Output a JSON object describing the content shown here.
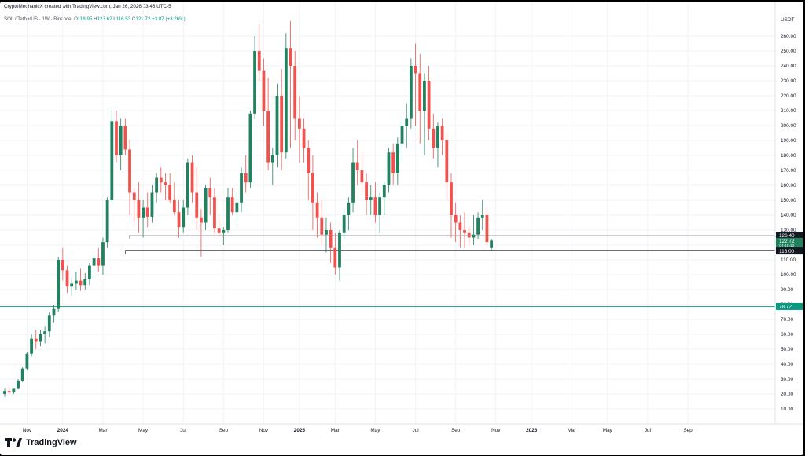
{
  "header": {
    "creator_line": "CryptoMechanicX created with TradingView.com, Jan 26, 2026 03:46 UTC-5",
    "symbol": "SOL / TetherUS · 1W · Binance",
    "ohlc": {
      "o_label": "O",
      "o": "118.95",
      "h_label": "H",
      "h": "123.62",
      "l_label": "L",
      "l": "116.53",
      "c_label": "C",
      "c": "122.72",
      "change": "+3.87 (+3.26%)"
    }
  },
  "currency_label": "USDT",
  "brand": "TradingView",
  "colors": {
    "up": "#26a69a",
    "up_dark": "#22815f",
    "down": "#ef5350",
    "hline": "#089981"
  },
  "chart_data": {
    "type": "candlestick",
    "symbol": "SOL / TetherUS",
    "interval": "1W",
    "exchange": "Binance",
    "y_axis": {
      "side": "right",
      "ylim": [
        5,
        270
      ],
      "ticks": [
        10,
        20,
        30,
        40,
        50,
        60,
        70,
        80,
        90,
        100,
        110,
        120,
        130,
        140,
        150,
        160,
        170,
        180,
        190,
        200,
        210,
        220,
        230,
        240,
        250,
        260
      ],
      "tick_labels": [
        "10.00",
        "20.00",
        "30.00",
        "40.00",
        "50.00",
        "60.00",
        "70.00",
        "80.00",
        "90.00",
        "100.00",
        "110.00",
        "120.00",
        "130.00",
        "140.00",
        "150.00",
        "160.00",
        "170.00",
        "180.00",
        "190.00",
        "200.00",
        "210.00",
        "220.00",
        "230.00",
        "240.00",
        "250.00",
        "260.00"
      ]
    },
    "x_axis": {
      "labels": [
        {
          "label": "Nov",
          "week": 5
        },
        {
          "label": "2024",
          "week": 13,
          "bold": true
        },
        {
          "label": "Mar",
          "week": 22
        },
        {
          "label": "May",
          "week": 31
        },
        {
          "label": "Jul",
          "week": 40
        },
        {
          "label": "Sep",
          "week": 49
        },
        {
          "label": "Nov",
          "week": 58
        },
        {
          "label": "2025",
          "week": 66,
          "bold": true
        },
        {
          "label": "Mar",
          "week": 74
        },
        {
          "label": "May",
          "week": 83
        },
        {
          "label": "Jul",
          "week": 92
        },
        {
          "label": "Sep",
          "week": 101
        },
        {
          "label": "Nov",
          "week": 110
        },
        {
          "label": "2026",
          "week": 118,
          "bold": true
        },
        {
          "label": "Mar",
          "week": 127
        },
        {
          "label": "May",
          "week": 135
        },
        {
          "label": "Jul",
          "week": 144
        },
        {
          "label": "Sep",
          "week": 153
        }
      ]
    },
    "horizontal_lines": [
      {
        "price": 78.72,
        "label": "78.72",
        "color": "#089981"
      }
    ],
    "support_lines": [
      {
        "price": 126.4,
        "from_week": 28,
        "label": "126.40"
      },
      {
        "price": 116.0,
        "from_week": 27,
        "label": "116.00"
      }
    ],
    "price_labels": [
      {
        "price": 126.4,
        "label": "126.40",
        "style": "dark"
      },
      {
        "price": 122.72,
        "label": "122.72",
        "style": "green"
      },
      {
        "price": 119.5,
        "label": "04:18:13",
        "style": "green-small"
      },
      {
        "price": 116.0,
        "label": "116.00",
        "style": "dark"
      }
    ],
    "candles": [
      [
        20,
        24,
        18,
        22
      ],
      [
        22,
        25,
        20,
        21
      ],
      [
        21,
        24,
        20,
        24
      ],
      [
        24,
        30,
        23,
        29
      ],
      [
        29,
        38,
        28,
        37
      ],
      [
        37,
        48,
        36,
        47
      ],
      [
        47,
        60,
        45,
        57
      ],
      [
        57,
        63,
        50,
        55
      ],
      [
        55,
        63,
        52,
        60
      ],
      [
        60,
        65,
        54,
        62
      ],
      [
        62,
        75,
        58,
        73
      ],
      [
        73,
        80,
        68,
        77
      ],
      [
        77,
        112,
        75,
        110
      ],
      [
        110,
        118,
        96,
        103
      ],
      [
        103,
        106,
        88,
        92
      ],
      [
        92,
        98,
        86,
        94
      ],
      [
        94,
        102,
        90,
        96
      ],
      [
        96,
        104,
        89,
        93
      ],
      [
        93,
        101,
        90,
        97
      ],
      [
        97,
        108,
        93,
        106
      ],
      [
        106,
        114,
        98,
        111
      ],
      [
        111,
        118,
        102,
        106
      ],
      [
        106,
        125,
        100,
        122
      ],
      [
        122,
        152,
        118,
        150
      ],
      [
        150,
        210,
        148,
        203
      ],
      [
        203,
        210,
        175,
        180
      ],
      [
        180,
        205,
        170,
        200
      ],
      [
        200,
        205,
        180,
        184
      ],
      [
        184,
        190,
        140,
        155
      ],
      [
        155,
        158,
        135,
        150
      ],
      [
        150,
        162,
        128,
        138
      ],
      [
        138,
        150,
        125,
        145
      ],
      [
        145,
        155,
        132,
        139
      ],
      [
        139,
        160,
        135,
        155
      ],
      [
        155,
        168,
        148,
        165
      ],
      [
        165,
        172,
        155,
        162
      ],
      [
        162,
        168,
        150,
        160
      ],
      [
        160,
        168,
        148,
        150
      ],
      [
        150,
        162,
        140,
        142
      ],
      [
        142,
        150,
        125,
        132
      ],
      [
        132,
        150,
        128,
        145
      ],
      [
        145,
        178,
        140,
        175
      ],
      [
        175,
        180,
        148,
        155
      ],
      [
        155,
        172,
        130,
        138
      ],
      [
        138,
        144,
        112,
        135
      ],
      [
        135,
        160,
        130,
        158
      ],
      [
        158,
        165,
        140,
        152
      ],
      [
        152,
        158,
        128,
        131
      ],
      [
        131,
        138,
        125,
        128
      ],
      [
        128,
        132,
        120,
        130
      ],
      [
        130,
        158,
        128,
        152
      ],
      [
        152,
        158,
        140,
        142
      ],
      [
        142,
        155,
        135,
        148
      ],
      [
        148,
        172,
        142,
        168
      ],
      [
        168,
        180,
        155,
        162
      ],
      [
        162,
        210,
        158,
        208
      ],
      [
        208,
        260,
        205,
        250
      ],
      [
        250,
        268,
        230,
        237
      ],
      [
        237,
        245,
        200,
        210
      ],
      [
        210,
        232,
        170,
        175
      ],
      [
        175,
        185,
        160,
        180
      ],
      [
        180,
        228,
        172,
        220
      ],
      [
        220,
        238,
        170,
        182
      ],
      [
        182,
        262,
        178,
        252
      ],
      [
        252,
        270,
        185,
        240
      ],
      [
        240,
        250,
        190,
        205
      ],
      [
        205,
        220,
        175,
        198
      ],
      [
        198,
        205,
        175,
        185
      ],
      [
        185,
        190,
        150,
        168
      ],
      [
        168,
        180,
        130,
        148
      ],
      [
        148,
        155,
        125,
        138
      ],
      [
        138,
        150,
        120,
        127
      ],
      [
        127,
        138,
        115,
        130
      ],
      [
        130,
        135,
        108,
        118
      ],
      [
        118,
        128,
        100,
        105
      ],
      [
        105,
        130,
        96,
        128
      ],
      [
        128,
        145,
        124,
        140
      ],
      [
        140,
        152,
        130,
        148
      ],
      [
        148,
        185,
        142,
        175
      ],
      [
        175,
        190,
        160,
        170
      ],
      [
        170,
        182,
        155,
        162
      ],
      [
        162,
        168,
        140,
        150
      ],
      [
        150,
        160,
        140,
        152
      ],
      [
        152,
        162,
        135,
        140
      ],
      [
        140,
        155,
        128,
        152
      ],
      [
        152,
        162,
        140,
        160
      ],
      [
        160,
        185,
        155,
        182
      ],
      [
        182,
        188,
        160,
        168
      ],
      [
        168,
        192,
        160,
        188
      ],
      [
        188,
        205,
        175,
        200
      ],
      [
        200,
        215,
        185,
        205
      ],
      [
        205,
        245,
        198,
        240
      ],
      [
        240,
        255,
        200,
        235
      ],
      [
        235,
        248,
        188,
        210
      ],
      [
        210,
        235,
        180,
        230
      ],
      [
        230,
        240,
        190,
        198
      ],
      [
        198,
        208,
        178,
        185
      ],
      [
        185,
        202,
        172,
        200
      ],
      [
        200,
        205,
        180,
        190
      ],
      [
        190,
        195,
        150,
        162
      ],
      [
        162,
        168,
        125,
        140
      ],
      [
        140,
        148,
        122,
        135
      ],
      [
        135,
        140,
        118,
        130
      ],
      [
        130,
        142,
        118,
        128
      ],
      [
        128,
        132,
        120,
        125
      ],
      [
        125,
        140,
        120,
        127
      ],
      [
        127,
        142,
        124,
        138
      ],
      [
        138,
        150,
        130,
        140
      ],
      [
        140,
        145,
        118,
        122
      ],
      [
        118,
        124,
        116,
        123
      ]
    ]
  }
}
